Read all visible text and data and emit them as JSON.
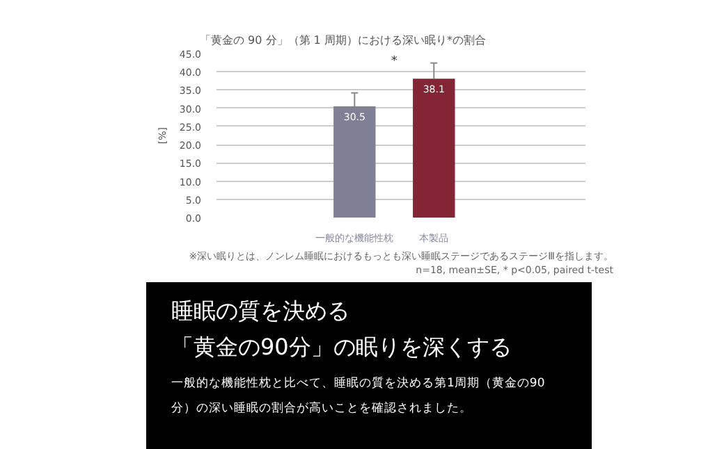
{
  "chart_data": {
    "type": "bar",
    "title": "「黄金の 90 分」（第 1 周期）における深い眠り*の割合",
    "ylabel": "[%]",
    "categories": [
      "一般的な機能性枕",
      "本製品"
    ],
    "values": [
      30.5,
      38.1
    ],
    "colors": [
      "#7f7f96",
      "#832535"
    ],
    "errors": [
      3.7,
      4.3
    ],
    "data_labels": true,
    "ylim": [
      0,
      45
    ],
    "yticks": [
      {
        "value": 0,
        "label": "0.0"
      },
      {
        "value": 5,
        "label": "5.0"
      },
      {
        "value": 10,
        "label": "10.0"
      },
      {
        "value": 15,
        "label": "15.0"
      },
      {
        "value": 20,
        "label": "20.0"
      },
      {
        "value": 25,
        "label": "25.0"
      },
      {
        "value": 30,
        "label": "30.0"
      },
      {
        "value": 35,
        "label": "35.0"
      },
      {
        "value": 40,
        "label": "40.0"
      },
      {
        "value": 45,
        "label": "45.0"
      }
    ],
    "grid": "y",
    "annotations": [
      "*",
      "※深い眠りとは、ノンレム睡眠におけるもっとも深い睡眠ステージであるステージⅢを指します。",
      "n=18, mean±SE, * p<0.05, paired t-test",
      "睡眠の質を決める",
      "「黄金の90分」の眠りを深くする",
      "一般的な機能性枕と比べて、睡眠の質を決める第1周期（黄金の90分）の深い睡眠の割合が高いことを確認されました。"
    ]
  }
}
